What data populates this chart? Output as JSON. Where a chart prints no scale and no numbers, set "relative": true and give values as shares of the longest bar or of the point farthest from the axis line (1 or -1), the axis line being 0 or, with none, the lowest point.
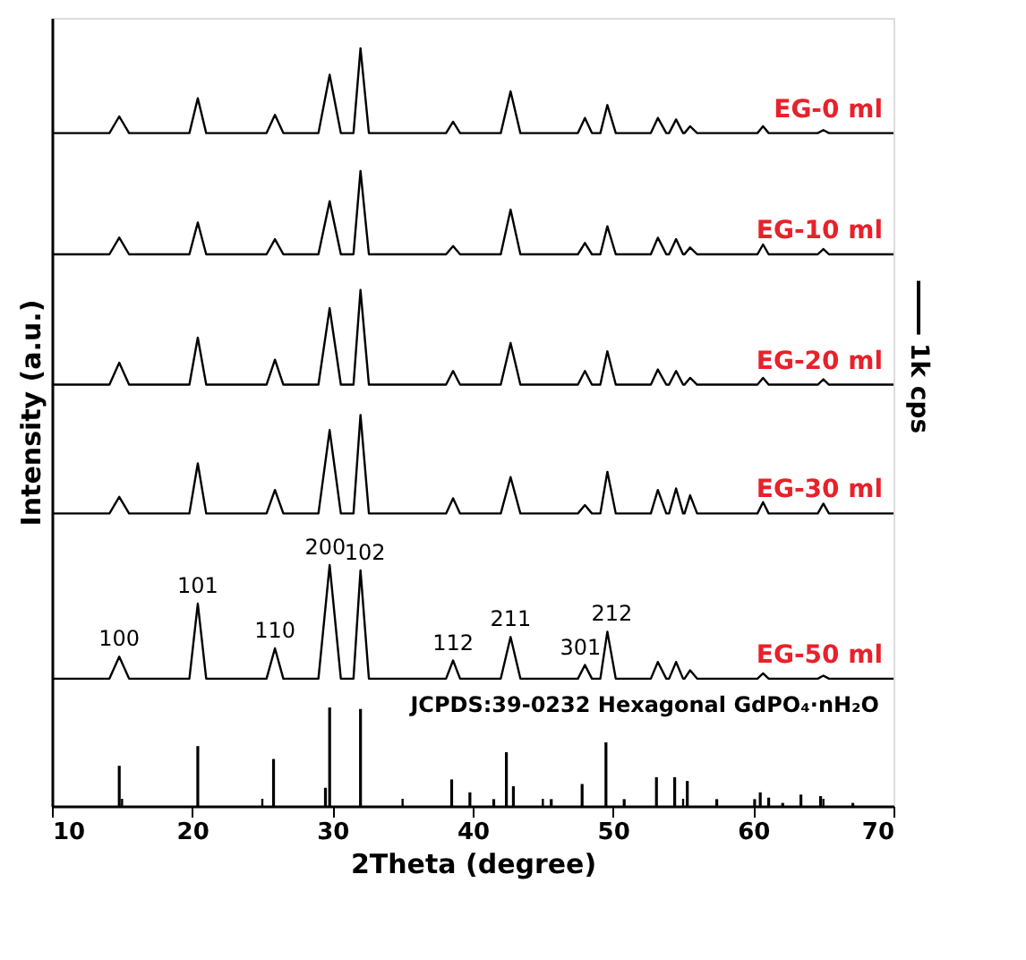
{
  "chart_data": {
    "type": "line",
    "relative": true,
    "xlabel": "2Theta (degree)",
    "ylabel": "Intensity (a.u.)",
    "xlim": [
      10,
      70
    ],
    "xticks": [
      10,
      {
        "value": 15,
        "label": null
      },
      20,
      {
        "value": 25,
        "label": null
      },
      30,
      {
        "value": 35,
        "label": null
      },
      40,
      {
        "value": 45,
        "label": null
      },
      50,
      {
        "value": 55,
        "label": null
      },
      60,
      {
        "value": 65,
        "label": null
      },
      70
    ],
    "x": [
      10,
      14.1,
      14.8,
      15.5,
      19.8,
      20.4,
      21.0,
      25.3,
      25.9,
      26.5,
      29.0,
      29.8,
      30.6,
      31.5,
      32.0,
      32.6,
      38.1,
      38.6,
      39.1,
      42.0,
      42.7,
      43.4,
      47.5,
      48.0,
      48.5,
      49.1,
      49.6,
      50.2,
      52.7,
      53.2,
      53.8,
      54.0,
      54.5,
      55.0,
      55.1,
      55.5,
      56.0,
      60.3,
      60.7,
      61.1,
      64.6,
      65.0,
      65.4,
      70
    ],
    "grid": false,
    "legend": false,
    "marker": "none",
    "line_style": "solid",
    "series": [
      {
        "name": "EG-0 ml",
        "color": "#000000",
        "values": [
          0.888,
          0.888,
          0.91,
          0.888,
          0.888,
          0.934,
          0.888,
          0.888,
          0.912,
          0.888,
          0.888,
          0.965,
          0.888,
          0.888,
          1.0,
          0.888,
          0.888,
          0.903,
          0.888,
          0.888,
          0.943,
          0.888,
          0.888,
          0.908,
          0.888,
          0.888,
          0.925,
          0.888,
          0.888,
          0.908,
          0.888,
          0.888,
          0.906,
          0.888,
          0.888,
          0.897,
          0.888,
          0.888,
          0.897,
          0.888,
          0.888,
          0.892,
          0.888,
          0.888
        ]
      },
      {
        "name": "EG-10 ml",
        "color": "#000000",
        "values": [
          0.728,
          0.728,
          0.75,
          0.728,
          0.728,
          0.77,
          0.728,
          0.728,
          0.748,
          0.728,
          0.728,
          0.798,
          0.728,
          0.728,
          0.838,
          0.728,
          0.728,
          0.739,
          0.728,
          0.728,
          0.787,
          0.728,
          0.728,
          0.743,
          0.728,
          0.728,
          0.765,
          0.728,
          0.728,
          0.75,
          0.728,
          0.728,
          0.748,
          0.728,
          0.728,
          0.737,
          0.728,
          0.728,
          0.741,
          0.728,
          0.728,
          0.735,
          0.728,
          0.728
        ]
      },
      {
        "name": "EG-20 ml",
        "color": "#000000",
        "values": [
          0.556,
          0.556,
          0.585,
          0.556,
          0.556,
          0.618,
          0.556,
          0.556,
          0.589,
          0.556,
          0.556,
          0.657,
          0.556,
          0.556,
          0.681,
          0.556,
          0.556,
          0.574,
          0.556,
          0.556,
          0.611,
          0.556,
          0.556,
          0.574,
          0.556,
          0.556,
          0.6,
          0.556,
          0.556,
          0.576,
          0.556,
          0.556,
          0.574,
          0.556,
          0.556,
          0.565,
          0.556,
          0.556,
          0.565,
          0.556,
          0.556,
          0.563,
          0.556,
          0.556
        ]
      },
      {
        "name": "EG-30 ml",
        "color": "#000000",
        "values": [
          0.386,
          0.386,
          0.408,
          0.386,
          0.386,
          0.452,
          0.386,
          0.386,
          0.417,
          0.386,
          0.386,
          0.496,
          0.386,
          0.386,
          0.516,
          0.386,
          0.386,
          0.406,
          0.386,
          0.386,
          0.434,
          0.386,
          0.386,
          0.397,
          0.386,
          0.386,
          0.441,
          0.386,
          0.386,
          0.417,
          0.386,
          0.386,
          0.419,
          0.386,
          0.386,
          0.41,
          0.386,
          0.386,
          0.401,
          0.386,
          0.386,
          0.399,
          0.386,
          0.386
        ]
      },
      {
        "name": "EG-50 ml",
        "color": "#000000",
        "values": [
          0.168,
          0.168,
          0.197,
          0.168,
          0.168,
          0.267,
          0.168,
          0.168,
          0.208,
          0.168,
          0.168,
          0.318,
          0.168,
          0.168,
          0.311,
          0.168,
          0.168,
          0.192,
          0.168,
          0.168,
          0.223,
          0.168,
          0.168,
          0.186,
          0.168,
          0.168,
          0.23,
          0.168,
          0.168,
          0.19,
          0.168,
          0.168,
          0.19,
          0.168,
          0.168,
          0.179,
          0.168,
          0.168,
          0.175,
          0.168,
          0.168,
          0.172,
          0.168,
          0.168
        ]
      },
      {
        "type": "bar",
        "color": "#000000",
        "x": [
          14.8,
          20.4,
          25.8,
          29.5,
          29.8,
          32.0,
          38.5,
          39.8,
          41.5,
          42.4,
          42.9,
          45.6,
          47.8,
          49.5,
          50.8,
          53.1,
          54.4,
          55.3,
          57.4,
          60.1,
          60.5,
          61.1,
          62.1,
          63.4,
          64.8,
          67.1
        ],
        "values": [
          0.053,
          0.079,
          0.062,
          0.024,
          0.13,
          0.128,
          0.035,
          0.018,
          0.009,
          0.071,
          0.026,
          0.009,
          0.029,
          0.084,
          0.009,
          0.038,
          0.038,
          0.033,
          0.009,
          0.009,
          0.018,
          0.011,
          0.004,
          0.015,
          0.013,
          0.004
        ]
      }
    ],
    "annotations": [
      {
        "text": "100",
        "x": 14.8,
        "y": 0.197
      },
      {
        "text": "101",
        "x": 20.4,
        "y": 0.267
      },
      {
        "text": "110",
        "x": 25.9,
        "y": 0.208
      },
      {
        "text": "200",
        "x": 29.8,
        "y": 0.318
      },
      {
        "text": "102",
        "x": 32.0,
        "y": 0.311
      },
      {
        "text": "112",
        "x": 38.6,
        "y": 0.192
      },
      {
        "text": "211",
        "x": 42.7,
        "y": 0.223
      },
      {
        "text": "301",
        "x": 48.0,
        "y": 0.186
      },
      {
        "text": "212",
        "x": 49.6,
        "y": 0.23
      },
      "JCPDS:39-0232 Hexagonal GdPO₄·nH₂O",
      "1k cps"
    ]
  }
}
